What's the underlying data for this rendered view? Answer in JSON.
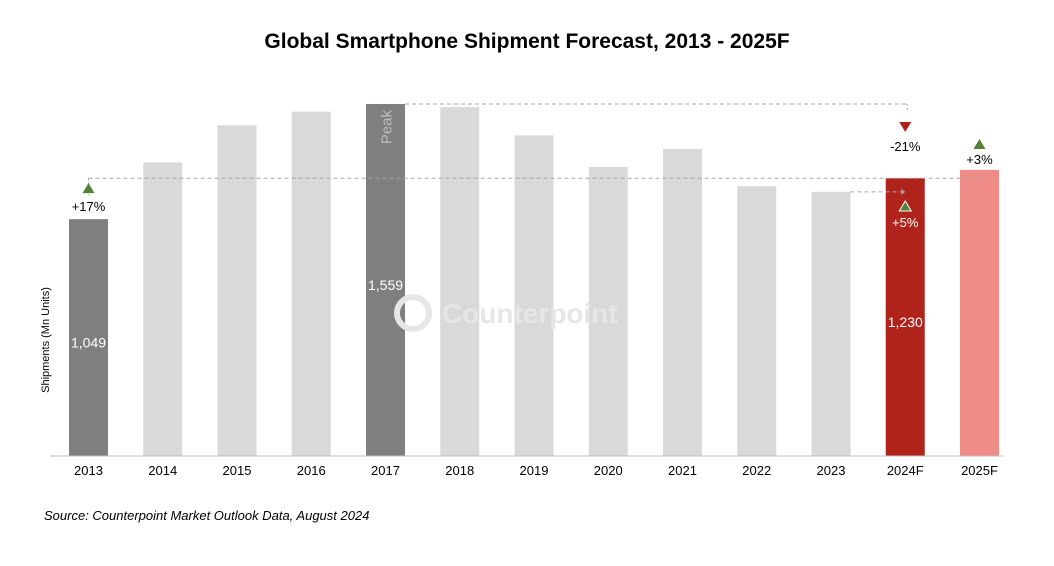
{
  "chart_data": {
    "type": "bar",
    "title": "Global Smartphone Shipment Forecast, 2013 - 2025F",
    "xlabel": "",
    "ylabel": "Shipments (Mn Units)",
    "ylim": [
      0,
      1600
    ],
    "categories": [
      "2013",
      "2014",
      "2015",
      "2016",
      "2017",
      "2018",
      "2019",
      "2020",
      "2021",
      "2022",
      "2023",
      "2024F",
      "2025F"
    ],
    "values": [
      1049,
      1300,
      1465,
      1525,
      1559,
      1545,
      1420,
      1280,
      1360,
      1195,
      1170,
      1230,
      1267
    ],
    "bar_colors": [
      "#7f7f7f",
      "#d9d9d9",
      "#d9d9d9",
      "#d9d9d9",
      "#7f7f7f",
      "#d9d9d9",
      "#d9d9d9",
      "#d9d9d9",
      "#d9d9d9",
      "#d9d9d9",
      "#d9d9d9",
      "#b0231b",
      "#f08c87"
    ],
    "data_labels": [
      {
        "category": "2013",
        "text": "1,049"
      },
      {
        "category": "2017",
        "text": "1,559"
      },
      {
        "category": "2024F",
        "text": "1,230"
      }
    ],
    "annotations": [
      {
        "text": "Peak",
        "category": "2017"
      },
      {
        "text": "+17%",
        "category": "2013",
        "direction": "up"
      },
      {
        "text": "-21%",
        "category": "2024F",
        "direction": "down"
      },
      {
        "text": "+5%",
        "category": "2024F",
        "direction": "up"
      },
      {
        "text": "+3%",
        "category": "2025F",
        "direction": "up"
      }
    ],
    "watermark": "Counterpoint",
    "legend": "none",
    "grid": false
  },
  "colors": {
    "up_marker": "#538135",
    "down_marker": "#b0231b",
    "reference_line": "#a6a6a6",
    "axis": "#bfbfbf"
  },
  "source": "Source: Counterpoint Market Outlook Data, August 2024"
}
